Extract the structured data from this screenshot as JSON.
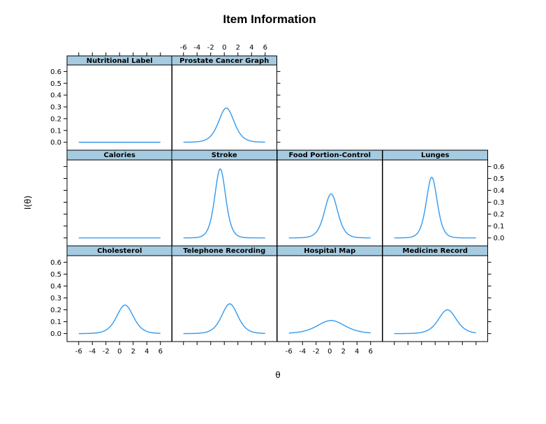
{
  "chart_data": {
    "type": "line",
    "title": "Item Information",
    "xlabel": "θ",
    "ylabel": "I(θ)",
    "xlim": [
      -7,
      7
    ],
    "ylim": [
      -0.02,
      0.62
    ],
    "x_ticks": [
      -6,
      -4,
      -2,
      0,
      2,
      4,
      6
    ],
    "y_ticks": [
      0.0,
      0.1,
      0.2,
      0.3,
      0.4,
      0.5,
      0.6
    ],
    "x_tick_labels": [
      "-6",
      "-4",
      "-2",
      "0",
      "2",
      "4",
      "6"
    ],
    "y_tick_labels": [
      "0.0",
      "0.1",
      "0.2",
      "0.3",
      "0.4",
      "0.5",
      "0.6"
    ],
    "grid": false,
    "layout": "lattice 4 columns x 3 rows",
    "line_color": "#3399ee",
    "strip_color": "#a6cbe0",
    "panels": [
      {
        "name": "Nutritional Label",
        "row": 0,
        "col": 0,
        "peak_theta": 0.0,
        "peak_info": 0.0,
        "spread": 1.0
      },
      {
        "name": "Prostate Cancer Graph",
        "row": 0,
        "col": 1,
        "peak_theta": 0.3,
        "peak_info": 0.29,
        "spread": 1.35
      },
      {
        "name": "Calories",
        "row": 1,
        "col": 0,
        "peak_theta": 0.0,
        "peak_info": 0.0,
        "spread": 1.0
      },
      {
        "name": "Stroke",
        "row": 1,
        "col": 1,
        "peak_theta": -0.6,
        "peak_info": 0.58,
        "spread": 0.95
      },
      {
        "name": "Food Portion-Control",
        "row": 1,
        "col": 2,
        "peak_theta": 0.2,
        "peak_info": 0.37,
        "spread": 1.15
      },
      {
        "name": "Lunges",
        "row": 1,
        "col": 3,
        "peak_theta": -0.5,
        "peak_info": 0.51,
        "spread": 0.95
      },
      {
        "name": "Cholesterol",
        "row": 2,
        "col": 0,
        "peak_theta": 0.8,
        "peak_info": 0.24,
        "spread": 1.45
      },
      {
        "name": "Telephone Recording",
        "row": 2,
        "col": 1,
        "peak_theta": 0.8,
        "peak_info": 0.25,
        "spread": 1.4
      },
      {
        "name": "Hospital Map",
        "row": 2,
        "col": 2,
        "peak_theta": 0.2,
        "peak_info": 0.11,
        "spread": 2.4
      },
      {
        "name": "Medicine Record",
        "row": 2,
        "col": 3,
        "peak_theta": 1.8,
        "peak_info": 0.2,
        "spread": 1.55
      }
    ]
  }
}
